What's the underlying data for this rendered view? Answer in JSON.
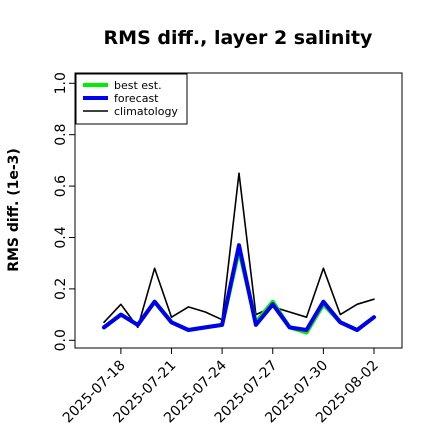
{
  "chart_data": {
    "type": "line",
    "title": "RMS diff., layer 2 salinity",
    "xlabel": "",
    "ylabel": "RMS diff. (1e-3)",
    "ylim": [
      -0.03,
      1.04
    ],
    "yticks": [
      0.0,
      0.2,
      0.4,
      0.6,
      0.8,
      1.0
    ],
    "ytick_labels": [
      "0.0",
      "0.2",
      "0.4",
      "0.6",
      "0.8",
      "1.0"
    ],
    "x": [
      "2025-07-17",
      "2025-07-18",
      "2025-07-19",
      "2025-07-20",
      "2025-07-21",
      "2025-07-22",
      "2025-07-23",
      "2025-07-24",
      "2025-07-25",
      "2025-07-26",
      "2025-07-27",
      "2025-07-28",
      "2025-07-29",
      "2025-07-30",
      "2025-07-31",
      "2025-08-01",
      "2025-08-02"
    ],
    "xticks": [
      "2025-07-18",
      "2025-07-21",
      "2025-07-24",
      "2025-07-27",
      "2025-07-30",
      "2025-08-02"
    ],
    "highlighted_xtick": "2025-07-24",
    "highlight_color": "#2e8b2e",
    "grid": false,
    "legend_position": "top-left",
    "series": [
      {
        "name": "best est.",
        "color": "#00ee00",
        "values": [
          0.05,
          0.1,
          0.06,
          0.15,
          0.07,
          0.04,
          0.05,
          0.06,
          0.35,
          0.07,
          0.15,
          0.05,
          0.03,
          0.14,
          0.07,
          0.04,
          0.09
        ]
      },
      {
        "name": "forecast",
        "color": "#0000ee",
        "values": [
          0.05,
          0.1,
          0.06,
          0.15,
          0.07,
          0.04,
          0.05,
          0.06,
          0.37,
          0.06,
          0.14,
          0.05,
          0.04,
          0.15,
          0.07,
          0.04,
          0.09
        ]
      },
      {
        "name": "climatology",
        "color": "#000000",
        "values": [
          0.07,
          0.14,
          0.05,
          0.28,
          0.09,
          0.13,
          0.11,
          0.08,
          0.65,
          0.1,
          0.13,
          0.11,
          0.09,
          0.28,
          0.1,
          0.14,
          0.16
        ]
      }
    ]
  }
}
